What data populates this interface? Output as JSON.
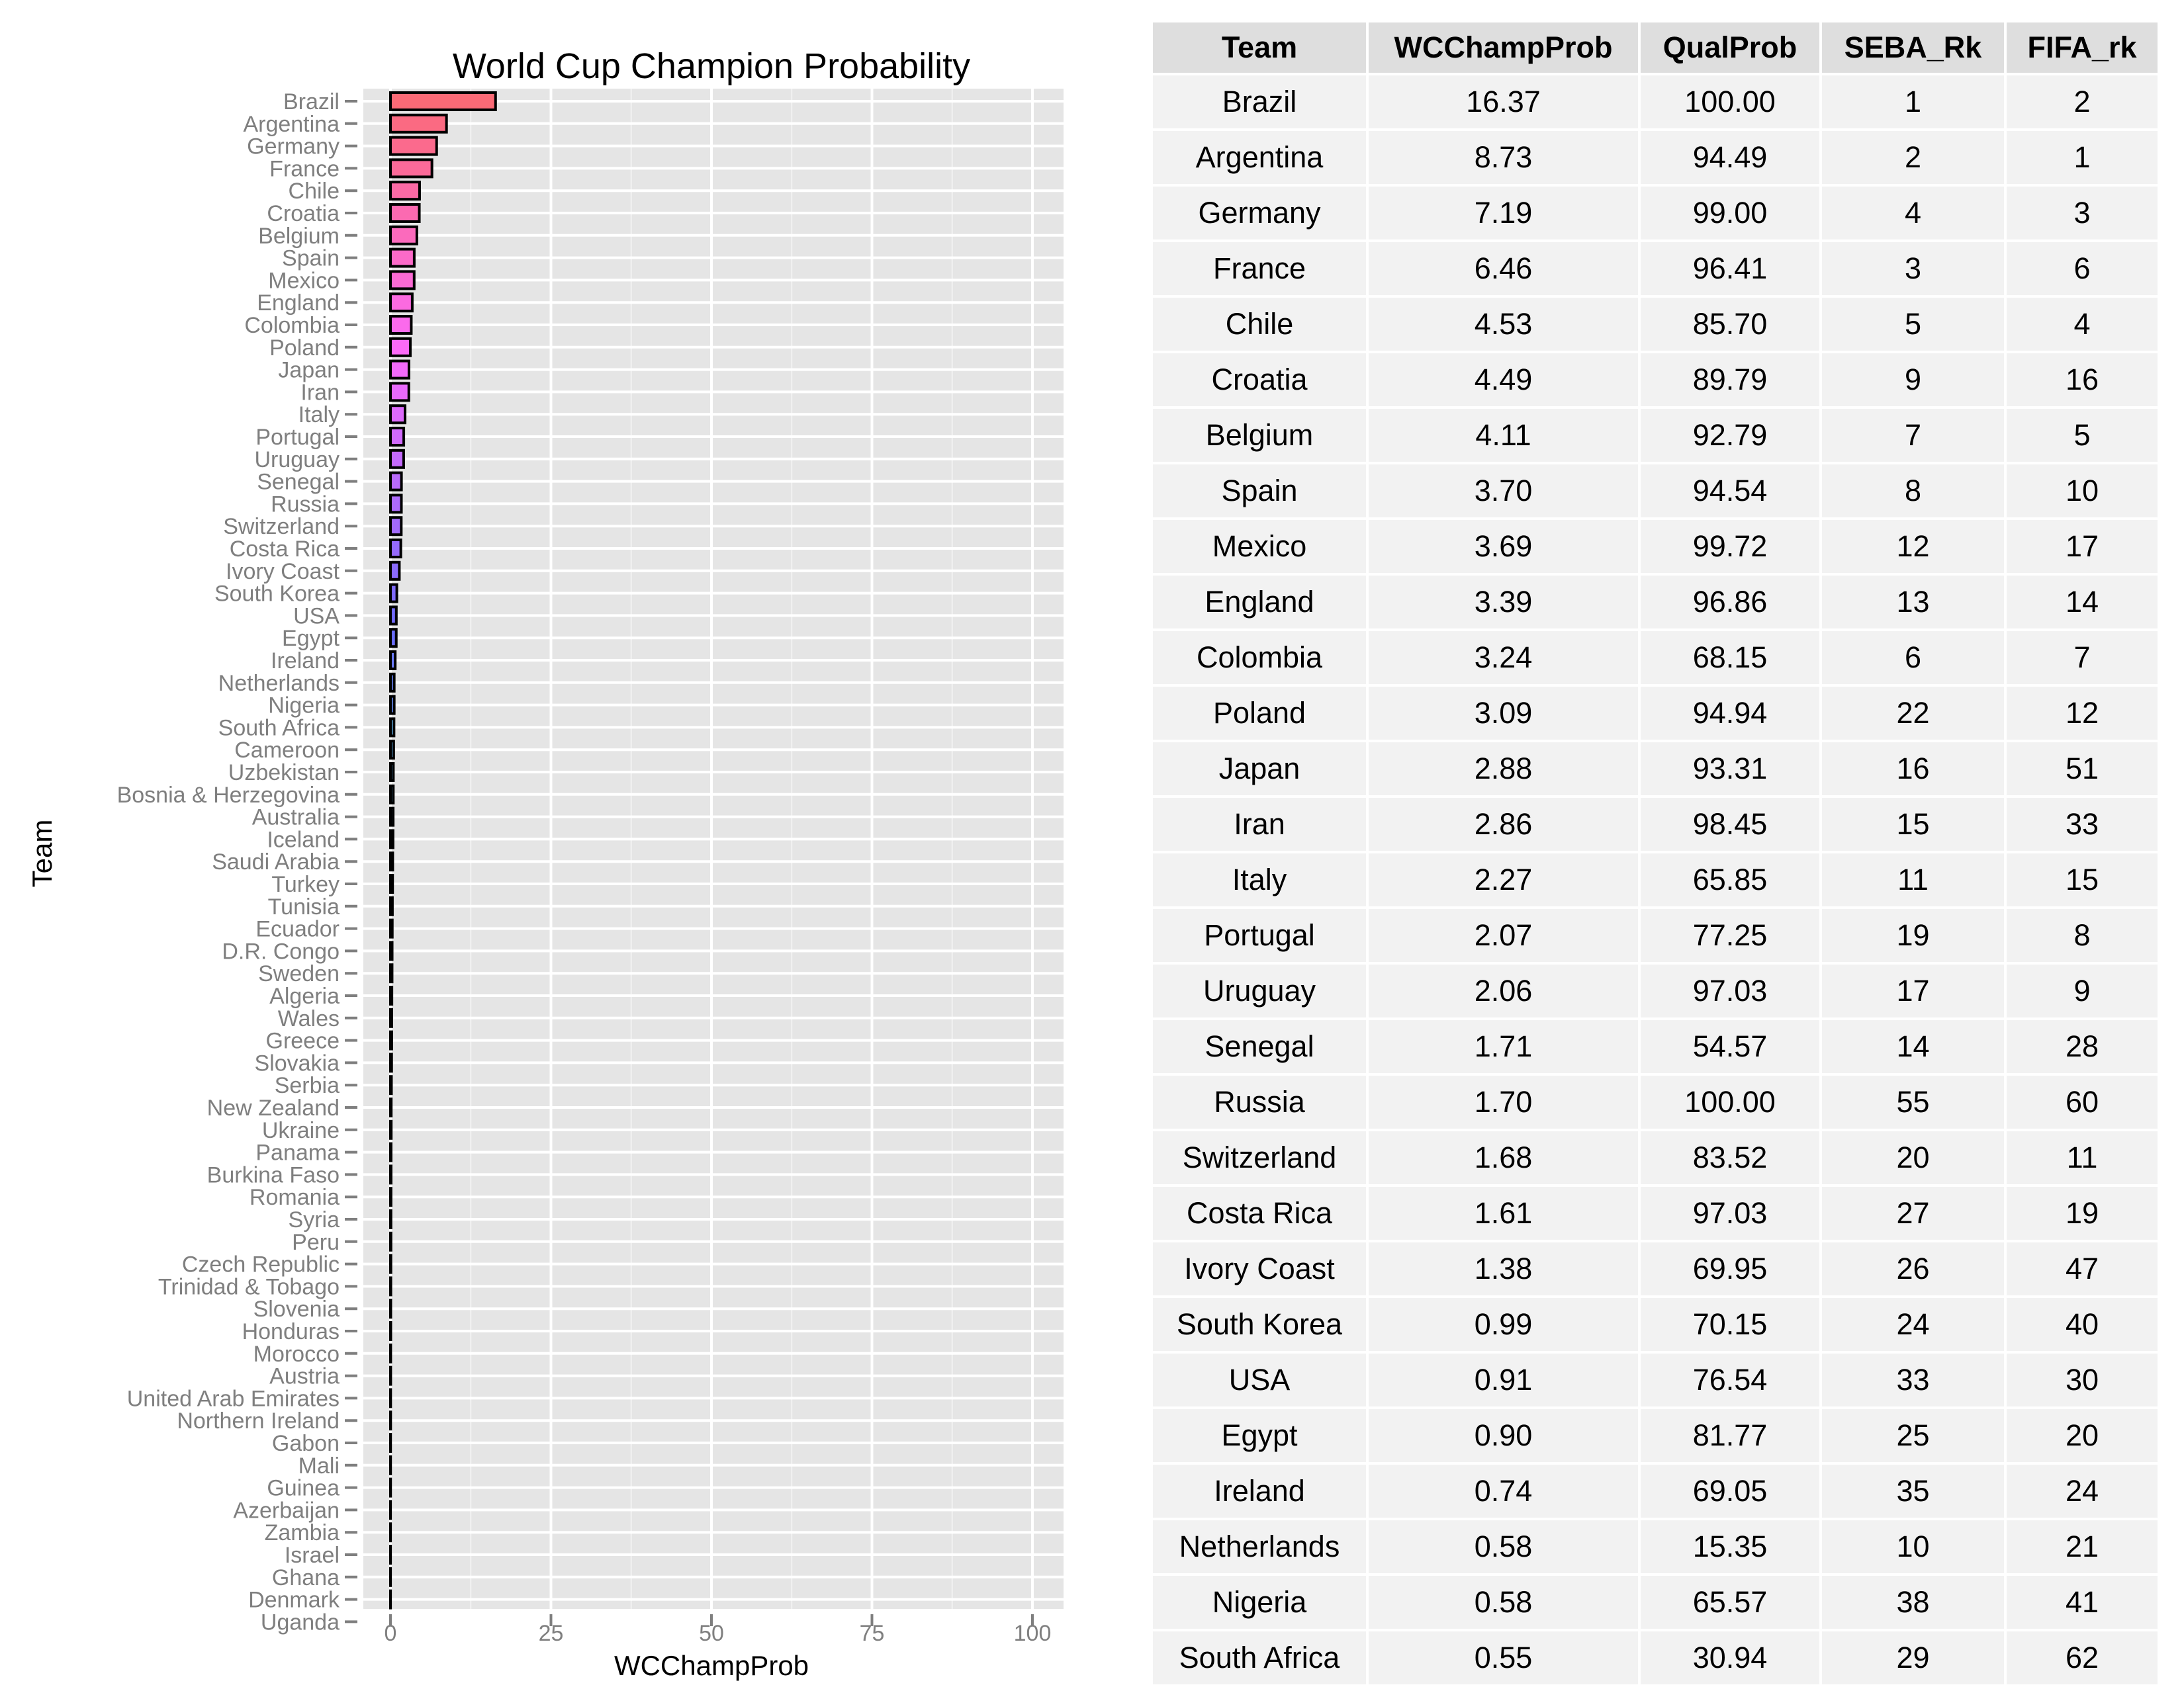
{
  "chart_data": {
    "type": "bar",
    "orientation": "horizontal",
    "title": "World Cup Champion Probability",
    "xlabel": "WCChampProb",
    "ylabel": "Team",
    "xlim": [
      0,
      100
    ],
    "xticks": [
      "0",
      "25",
      "50",
      "75",
      "100"
    ],
    "grid": true,
    "categories": [
      "Brazil",
      "Argentina",
      "Germany",
      "France",
      "Chile",
      "Croatia",
      "Belgium",
      "Spain",
      "Mexico",
      "England",
      "Colombia",
      "Poland",
      "Japan",
      "Iran",
      "Italy",
      "Portugal",
      "Uruguay",
      "Senegal",
      "Russia",
      "Switzerland",
      "Costa Rica",
      "Ivory Coast",
      "South Korea",
      "USA",
      "Egypt",
      "Ireland",
      "Netherlands",
      "Nigeria",
      "South Africa",
      "Cameroon",
      "Uzbekistan",
      "Bosnia & Herzegovina",
      "Australia",
      "Iceland",
      "Saudi Arabia",
      "Turkey",
      "Tunisia",
      "Ecuador",
      "D.R. Congo",
      "Sweden",
      "Algeria",
      "Wales",
      "Greece",
      "Slovakia",
      "Serbia",
      "New Zealand",
      "Ukraine",
      "Panama",
      "Burkina Faso",
      "Romania",
      "Syria",
      "Peru",
      "Czech Republic",
      "Trinidad & Tobago",
      "Slovenia",
      "Honduras",
      "Morocco",
      "Austria",
      "United Arab Emirates",
      "Northern Ireland",
      "Gabon",
      "Mali",
      "Guinea",
      "Azerbaijan",
      "Zambia",
      "Israel",
      "Ghana",
      "Denmark",
      "Uganda"
    ],
    "values": [
      16.37,
      8.73,
      7.19,
      6.46,
      4.53,
      4.49,
      4.11,
      3.7,
      3.69,
      3.39,
      3.24,
      3.09,
      2.88,
      2.86,
      2.27,
      2.07,
      2.06,
      1.71,
      1.7,
      1.68,
      1.61,
      1.38,
      0.99,
      0.91,
      0.9,
      0.74,
      0.58,
      0.58,
      0.55,
      0.5,
      0.45,
      0.44,
      0.42,
      0.4,
      0.35,
      0.33,
      0.3,
      0.28,
      0.26,
      0.25,
      0.22,
      0.2,
      0.2,
      0.18,
      0.15,
      0.12,
      0.12,
      0.1,
      0.1,
      0.09,
      0.08,
      0.08,
      0.07,
      0.06,
      0.05,
      0.05,
      0.04,
      0.04,
      0.03,
      0.03,
      0.02,
      0.02,
      0.02,
      0.01,
      0.01,
      0.01,
      0.01,
      0.01,
      0.0
    ],
    "fill": "hue gradient by rank (red to blue)"
  },
  "table": {
    "headers": [
      "Team",
      "WCChampProb",
      "QualProb",
      "SEBA_Rk",
      "FIFA_rk"
    ],
    "rows": [
      [
        "Brazil",
        "16.37",
        "100.00",
        "1",
        "2"
      ],
      [
        "Argentina",
        "8.73",
        "94.49",
        "2",
        "1"
      ],
      [
        "Germany",
        "7.19",
        "99.00",
        "4",
        "3"
      ],
      [
        "France",
        "6.46",
        "96.41",
        "3",
        "6"
      ],
      [
        "Chile",
        "4.53",
        "85.70",
        "5",
        "4"
      ],
      [
        "Croatia",
        "4.49",
        "89.79",
        "9",
        "16"
      ],
      [
        "Belgium",
        "4.11",
        "92.79",
        "7",
        "5"
      ],
      [
        "Spain",
        "3.70",
        "94.54",
        "8",
        "10"
      ],
      [
        "Mexico",
        "3.69",
        "99.72",
        "12",
        "17"
      ],
      [
        "England",
        "3.39",
        "96.86",
        "13",
        "14"
      ],
      [
        "Colombia",
        "3.24",
        "68.15",
        "6",
        "7"
      ],
      [
        "Poland",
        "3.09",
        "94.94",
        "22",
        "12"
      ],
      [
        "Japan",
        "2.88",
        "93.31",
        "16",
        "51"
      ],
      [
        "Iran",
        "2.86",
        "98.45",
        "15",
        "33"
      ],
      [
        "Italy",
        "2.27",
        "65.85",
        "11",
        "15"
      ],
      [
        "Portugal",
        "2.07",
        "77.25",
        "19",
        "8"
      ],
      [
        "Uruguay",
        "2.06",
        "97.03",
        "17",
        "9"
      ],
      [
        "Senegal",
        "1.71",
        "54.57",
        "14",
        "28"
      ],
      [
        "Russia",
        "1.70",
        "100.00",
        "55",
        "60"
      ],
      [
        "Switzerland",
        "1.68",
        "83.52",
        "20",
        "11"
      ],
      [
        "Costa Rica",
        "1.61",
        "97.03",
        "27",
        "19"
      ],
      [
        "Ivory Coast",
        "1.38",
        "69.95",
        "26",
        "47"
      ],
      [
        "South Korea",
        "0.99",
        "70.15",
        "24",
        "40"
      ],
      [
        "USA",
        "0.91",
        "76.54",
        "33",
        "30"
      ],
      [
        "Egypt",
        "0.90",
        "81.77",
        "25",
        "20"
      ],
      [
        "Ireland",
        "0.74",
        "69.05",
        "35",
        "24"
      ],
      [
        "Netherlands",
        "0.58",
        "15.35",
        "10",
        "21"
      ],
      [
        "Nigeria",
        "0.58",
        "65.57",
        "38",
        "41"
      ],
      [
        "South Africa",
        "0.55",
        "30.94",
        "29",
        "62"
      ]
    ]
  }
}
